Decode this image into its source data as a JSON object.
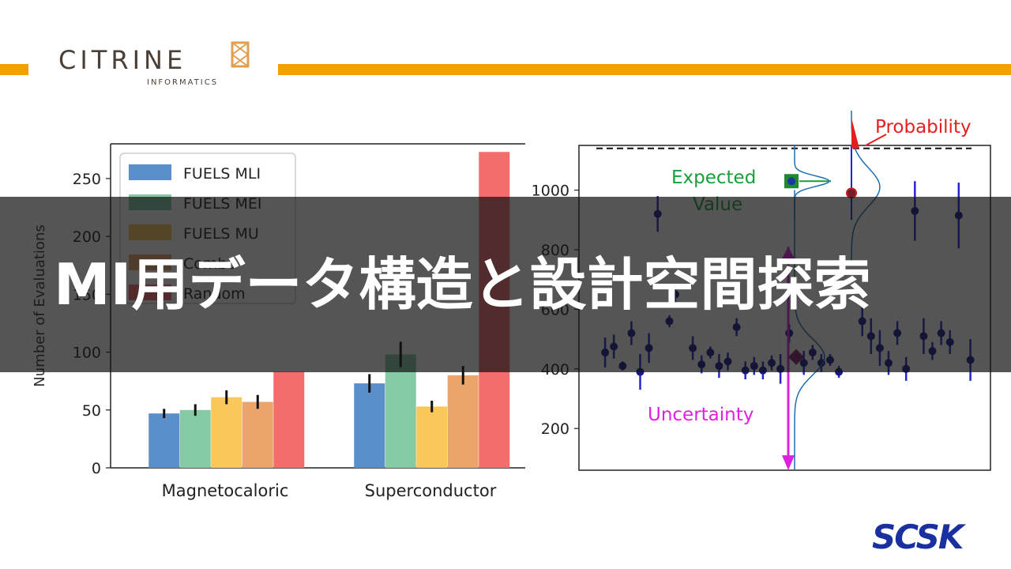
{
  "header": {
    "logo_name": "CITRINE",
    "logo_subtitle": "INFORMATICS",
    "accent_color": "#f5a000"
  },
  "banner": {
    "title": "MI用データ構造と設計空間探索"
  },
  "footer": {
    "brand": "SCSK",
    "brand_color": "#1a2fa0"
  },
  "chart_data": [
    {
      "type": "bar",
      "categories": [
        "Magnetocaloric",
        "Superconductor"
      ],
      "ylabel": "Number of Evaluations",
      "ylim": [
        0,
        280
      ],
      "yticks": [
        0,
        50,
        100,
        150,
        200,
        250
      ],
      "legend_position": "top-left",
      "series": [
        {
          "name": "FUELS MLI",
          "color": "#5b8fc9",
          "values": [
            47,
            73
          ],
          "errors": [
            4,
            8
          ]
        },
        {
          "name": "FUELS MEI",
          "color": "#86c9a5",
          "values": [
            50,
            98
          ],
          "errors": [
            5,
            11
          ]
        },
        {
          "name": "FUELS MU",
          "color": "#f9c75a",
          "values": [
            61,
            53
          ],
          "errors": [
            6,
            5
          ]
        },
        {
          "name": "Combo",
          "color": "#eba56b",
          "values": [
            57,
            80
          ],
          "errors": [
            6,
            8
          ]
        },
        {
          "name": "Random",
          "color": "#f36d6d",
          "values": [
            83,
            273
          ],
          "errors": [
            0,
            0
          ]
        }
      ]
    },
    {
      "type": "scatter",
      "ylim": [
        60,
        1150
      ],
      "yticks": [
        200,
        400,
        600,
        800,
        1000
      ],
      "threshold": 1140,
      "annotations": {
        "probability": "Probability",
        "expected_line1": "Expected",
        "expected_line2": "Value",
        "uncertainty": "Uncertainty"
      },
      "colors": {
        "points": "#16168a",
        "errorbars": "#2626d0",
        "probability": "#e32020",
        "expected": "#17a03a",
        "uncertainty": "#e020e0"
      },
      "points": [
        {
          "x": 0.3,
          "y": 455,
          "e": 50
        },
        {
          "x": 0.6,
          "y": 475,
          "e": 40
        },
        {
          "x": 0.9,
          "y": 410,
          "e": 15
        },
        {
          "x": 1.2,
          "y": 520,
          "e": 40
        },
        {
          "x": 1.5,
          "y": 390,
          "e": 60
        },
        {
          "x": 1.8,
          "y": 470,
          "e": 50
        },
        {
          "x": 2.1,
          "y": 920,
          "e": 60
        },
        {
          "x": 2.5,
          "y": 560,
          "e": 20
        },
        {
          "x": 2.7,
          "y": 650,
          "e": 30
        },
        {
          "x": 3.3,
          "y": 470,
          "e": 40
        },
        {
          "x": 3.6,
          "y": 415,
          "e": 30
        },
        {
          "x": 3.9,
          "y": 455,
          "e": 20
        },
        {
          "x": 4.2,
          "y": 410,
          "e": 40
        },
        {
          "x": 4.5,
          "y": 425,
          "e": 30
        },
        {
          "x": 4.8,
          "y": 540,
          "e": 30
        },
        {
          "x": 5.1,
          "y": 395,
          "e": 30
        },
        {
          "x": 5.4,
          "y": 410,
          "e": 30
        },
        {
          "x": 5.7,
          "y": 395,
          "e": 30
        },
        {
          "x": 6.0,
          "y": 420,
          "e": 25
        },
        {
          "x": 6.3,
          "y": 400,
          "e": 50
        },
        {
          "x": 6.6,
          "y": 520,
          "e": 30
        },
        {
          "x": 7.1,
          "y": 420,
          "e": 40
        },
        {
          "x": 7.4,
          "y": 455,
          "e": 25
        },
        {
          "x": 7.7,
          "y": 420,
          "e": 30
        },
        {
          "x": 8.0,
          "y": 430,
          "e": 20
        },
        {
          "x": 8.3,
          "y": 390,
          "e": 20
        },
        {
          "x": 9.1,
          "y": 560,
          "e": 50
        },
        {
          "x": 9.4,
          "y": 510,
          "e": 60
        },
        {
          "x": 9.7,
          "y": 470,
          "e": 60
        },
        {
          "x": 10.0,
          "y": 420,
          "e": 40
        },
        {
          "x": 10.3,
          "y": 520,
          "e": 40
        },
        {
          "x": 10.6,
          "y": 400,
          "e": 40
        },
        {
          "x": 10.9,
          "y": 930,
          "e": 100
        },
        {
          "x": 11.2,
          "y": 510,
          "e": 60
        },
        {
          "x": 11.5,
          "y": 460,
          "e": 30
        },
        {
          "x": 11.8,
          "y": 520,
          "e": 40
        },
        {
          "x": 12.1,
          "y": 490,
          "e": 40
        },
        {
          "x": 12.4,
          "y": 915,
          "e": 110
        },
        {
          "x": 12.8,
          "y": 430,
          "e": 70
        }
      ]
    }
  ]
}
